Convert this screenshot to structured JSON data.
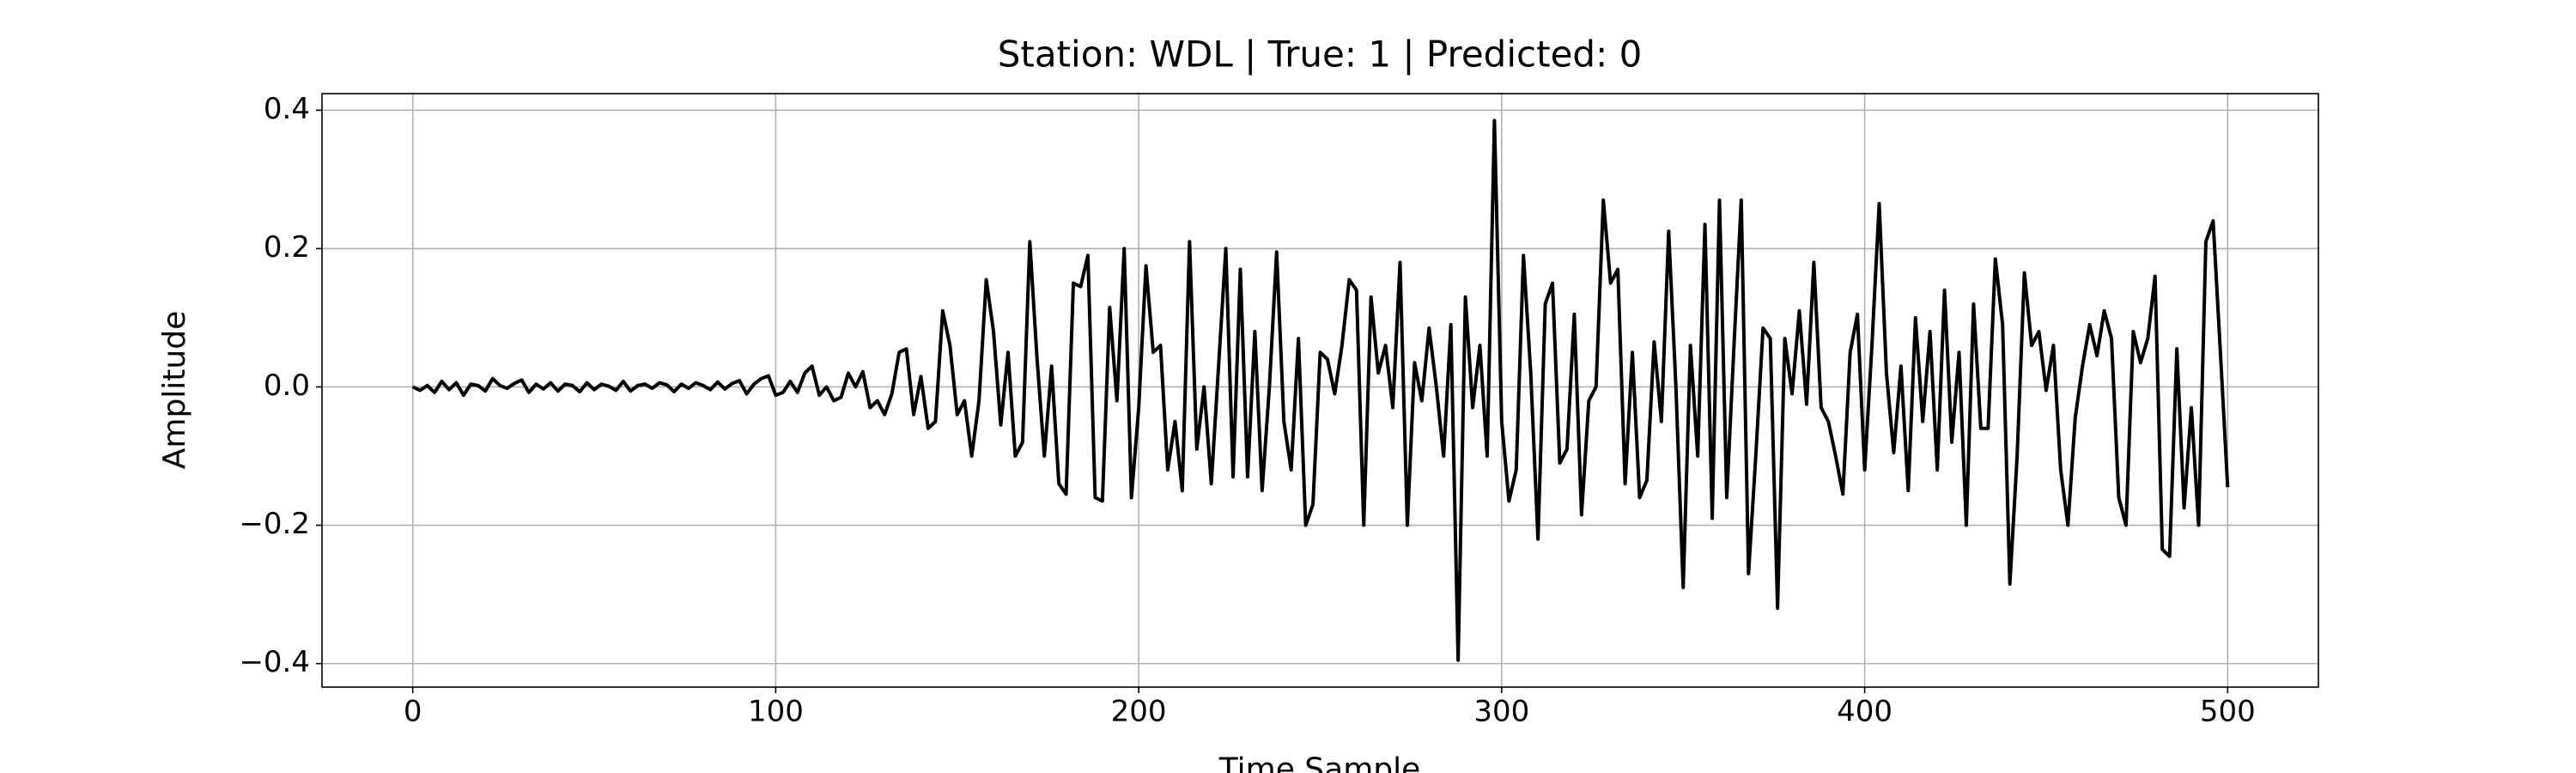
{
  "chart_data": {
    "type": "line",
    "title": "Station: WDL | True: 1 | Predicted: 0",
    "x_label": "Time Sample",
    "y_label": "Amplitude",
    "xlim": [
      -25,
      525
    ],
    "ylim": [
      -0.434,
      0.424
    ],
    "xticks": [
      0,
      100,
      200,
      300,
      400,
      500
    ],
    "yticks": [
      {
        "value": -0.4,
        "label": "−0.4"
      },
      {
        "value": -0.2,
        "label": "−0.2"
      },
      {
        "value": 0,
        "label": "0.0"
      },
      0.2,
      0.4
    ],
    "grid": true,
    "color": "#000000",
    "x": [
      0,
      2,
      4,
      6,
      8,
      10,
      12,
      14,
      16,
      18,
      20,
      22,
      24,
      26,
      28,
      30,
      32,
      34,
      36,
      38,
      40,
      42,
      44,
      46,
      48,
      50,
      52,
      54,
      56,
      58,
      60,
      62,
      64,
      66,
      68,
      70,
      72,
      74,
      76,
      78,
      80,
      82,
      84,
      86,
      88,
      90,
      92,
      94,
      96,
      98,
      100,
      102,
      104,
      106,
      108,
      110,
      112,
      114,
      116,
      118,
      120,
      122,
      124,
      126,
      128,
      130,
      132,
      134,
      136,
      138,
      140,
      142,
      144,
      146,
      148,
      150,
      152,
      154,
      156,
      158,
      160,
      162,
      164,
      166,
      168,
      170,
      172,
      174,
      176,
      178,
      180,
      182,
      184,
      186,
      188,
      190,
      192,
      194,
      196,
      198,
      200,
      202,
      204,
      206,
      208,
      210,
      212,
      214,
      216,
      218,
      220,
      222,
      224,
      226,
      228,
      230,
      232,
      234,
      236,
      238,
      240,
      242,
      244,
      246,
      248,
      250,
      252,
      254,
      256,
      258,
      260,
      262,
      264,
      266,
      268,
      270,
      272,
      274,
      276,
      278,
      280,
      282,
      284,
      286,
      288,
      290,
      292,
      294,
      296,
      298,
      300,
      302,
      304,
      306,
      308,
      310,
      312,
      314,
      316,
      318,
      320,
      322,
      324,
      326,
      328,
      330,
      332,
      334,
      336,
      338,
      340,
      342,
      344,
      346,
      348,
      350,
      352,
      354,
      356,
      358,
      360,
      362,
      364,
      366,
      368,
      370,
      372,
      374,
      376,
      378,
      380,
      382,
      384,
      386,
      388,
      390,
      392,
      394,
      396,
      398,
      400,
      402,
      404,
      406,
      408,
      410,
      412,
      414,
      416,
      418,
      420,
      422,
      424,
      426,
      428,
      430,
      432,
      434,
      436,
      438,
      440,
      442,
      444,
      446,
      448,
      450,
      452,
      454,
      456,
      458,
      460,
      462,
      464,
      466,
      468,
      470,
      472,
      474,
      476,
      478,
      480,
      482,
      484,
      486,
      488,
      490,
      492,
      494,
      496,
      498,
      500
    ],
    "values": [
      0,
      -0.005,
      0.002,
      -0.008,
      0.008,
      -0.004,
      0.006,
      -0.012,
      0.004,
      0.002,
      -0.006,
      0.012,
      0.002,
      -0.002,
      0.005,
      0.01,
      -0.008,
      0.004,
      -0.003,
      0.006,
      -0.006,
      0.004,
      0.002,
      -0.007,
      0.006,
      -0.004,
      0.004,
      0.001,
      -0.005,
      0.008,
      -0.006,
      0.002,
      0.004,
      -0.002,
      0.006,
      0.003,
      -0.007,
      0.004,
      -0.002,
      0.006,
      0.002,
      -0.004,
      0.007,
      -0.003,
      0.005,
      0.009,
      -0.01,
      0.004,
      0.012,
      0.016,
      -0.012,
      -0.008,
      0.008,
      -0.008,
      0.02,
      0.03,
      -0.012,
      0.0,
      -0.02,
      -0.015,
      0.02,
      0.0,
      0.022,
      -0.03,
      -0.02,
      -0.04,
      -0.01,
      0.05,
      0.055,
      -0.04,
      0.015,
      -0.06,
      -0.05,
      0.11,
      0.06,
      -0.04,
      -0.02,
      -0.1,
      -0.02,
      0.155,
      0.08,
      -0.055,
      0.05,
      -0.1,
      -0.08,
      0.21,
      0.04,
      -0.1,
      0.03,
      -0.14,
      -0.155,
      0.15,
      0.145,
      0.19,
      -0.16,
      -0.165,
      0.115,
      -0.02,
      0.2,
      -0.16,
      -0.03,
      0.175,
      0.05,
      0.06,
      -0.12,
      -0.05,
      -0.15,
      0.21,
      -0.09,
      0.0,
      -0.14,
      0.03,
      0.2,
      -0.13,
      0.17,
      -0.13,
      0.08,
      -0.15,
      0.0,
      0.195,
      -0.05,
      -0.12,
      0.07,
      -0.2,
      -0.17,
      0.05,
      0.04,
      -0.01,
      0.06,
      0.155,
      0.14,
      -0.2,
      0.13,
      0.02,
      0.06,
      -0.03,
      0.18,
      -0.2,
      0.035,
      -0.02,
      0.085,
      0.0,
      -0.1,
      0.09,
      -0.395,
      0.13,
      -0.03,
      0.06,
      -0.1,
      0.385,
      -0.05,
      -0.165,
      -0.12,
      0.19,
      0.02,
      -0.22,
      0.12,
      0.15,
      -0.11,
      -0.09,
      0.105,
      -0.185,
      -0.02,
      0.0,
      0.27,
      0.15,
      0.17,
      -0.14,
      0.05,
      -0.16,
      -0.135,
      0.065,
      -0.05,
      0.225,
      0.0,
      -0.29,
      0.06,
      -0.1,
      0.235,
      -0.19,
      0.27,
      -0.16,
      0.06,
      0.27,
      -0.27,
      -0.1,
      0.085,
      0.07,
      -0.32,
      0.07,
      -0.01,
      0.11,
      -0.025,
      0.18,
      -0.03,
      -0.05,
      -0.1,
      -0.155,
      0.05,
      0.105,
      -0.12,
      0.06,
      0.265,
      0.02,
      -0.095,
      0.03,
      -0.15,
      0.1,
      -0.05,
      0.08,
      -0.12,
      0.14,
      -0.08,
      0.05,
      -0.2,
      0.12,
      -0.06,
      -0.06,
      0.185,
      0.09,
      -0.285,
      -0.1,
      0.165,
      0.06,
      0.08,
      -0.005,
      0.06,
      -0.12,
      -0.2,
      -0.045,
      0.03,
      0.09,
      0.045,
      0.11,
      0.07,
      -0.16,
      -0.2,
      0.08,
      0.035,
      0.07,
      0.16,
      -0.235,
      -0.245,
      0.055,
      -0.175,
      -0.03,
      -0.2,
      0.21,
      0.24,
      0.05,
      -0.145
    ]
  }
}
